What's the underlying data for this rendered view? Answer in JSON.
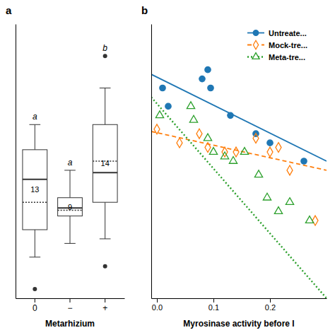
{
  "chart_data": [
    {
      "type": "box",
      "title": "a",
      "x_label": "Metarhizium",
      "categories": [
        "0",
        "−",
        "+"
      ],
      "boxes": [
        {
          "n": 13,
          "median": 0.52,
          "mean": 0.42,
          "q1": 0.3,
          "q3": 0.65,
          "whisker_low": 0.18,
          "whisker_high": 0.76,
          "outliers": [
            0.04
          ],
          "sig_label": "a"
        },
        {
          "n": 9,
          "median": 0.395,
          "mean": 0.385,
          "q1": 0.36,
          "q3": 0.44,
          "whisker_low": 0.24,
          "whisker_high": 0.56,
          "outliers": [],
          "sig_label": "a"
        },
        {
          "n": 14,
          "median": 0.55,
          "mean": 0.6,
          "q1": 0.42,
          "q3": 0.76,
          "whisker_low": 0.26,
          "whisker_high": 0.92,
          "outliers": [
            0.14,
            1.06
          ],
          "sig_label": "b"
        }
      ],
      "ylim": [
        0.0,
        1.2
      ],
      "tick_labels": "x"
    },
    {
      "type": "scatter",
      "title": "b",
      "x_label": "Myrosinase activity before I",
      "xlim": [
        -0.01,
        0.3
      ],
      "xticks": [
        {
          "value": 0.0,
          "label": "0.0"
        },
        0.1,
        0.2
      ],
      "ylim": [
        -0.2,
        1.0
      ],
      "tick_labels": "x",
      "legend": "upper right",
      "series": [
        {
          "name": "Untreate...",
          "marker": "circle",
          "line_style": "solid",
          "x": [
            0.01,
            0.02,
            0.08,
            0.09,
            0.095,
            0.13,
            0.175,
            0.2,
            0.26
          ],
          "values": [
            0.72,
            0.64,
            0.76,
            0.8,
            0.72,
            0.6,
            0.52,
            0.48,
            0.4
          ],
          "line": {
            "x": [
              -0.01,
              0.3
            ],
            "values": [
              0.78,
              0.4
            ]
          }
        },
        {
          "name": "Mock-tre...",
          "marker": "diamond-open",
          "line_style": "dashed",
          "x": [
            0.0,
            0.04,
            0.075,
            0.09,
            0.12,
            0.14,
            0.175,
            0.2,
            0.215,
            0.235,
            0.28
          ],
          "values": [
            0.54,
            0.48,
            0.52,
            0.46,
            0.44,
            0.44,
            0.5,
            0.44,
            0.46,
            0.36,
            0.14
          ],
          "line": {
            "x": [
              -0.01,
              0.3
            ],
            "values": [
              0.53,
              0.36
            ]
          }
        },
        {
          "name": "Meta-tre...",
          "marker": "triangle-open",
          "line_style": "dotted",
          "x": [
            0.005,
            0.06,
            0.065,
            0.09,
            0.1,
            0.12,
            0.135,
            0.155,
            0.18,
            0.195,
            0.215,
            0.235,
            0.27
          ],
          "values": [
            0.6,
            0.64,
            0.58,
            0.5,
            0.44,
            0.42,
            0.4,
            0.44,
            0.34,
            0.24,
            0.18,
            0.22,
            0.14
          ],
          "line": {
            "x": [
              -0.01,
              0.3
            ],
            "values": [
              0.68,
              -0.2
            ]
          }
        }
      ]
    }
  ]
}
